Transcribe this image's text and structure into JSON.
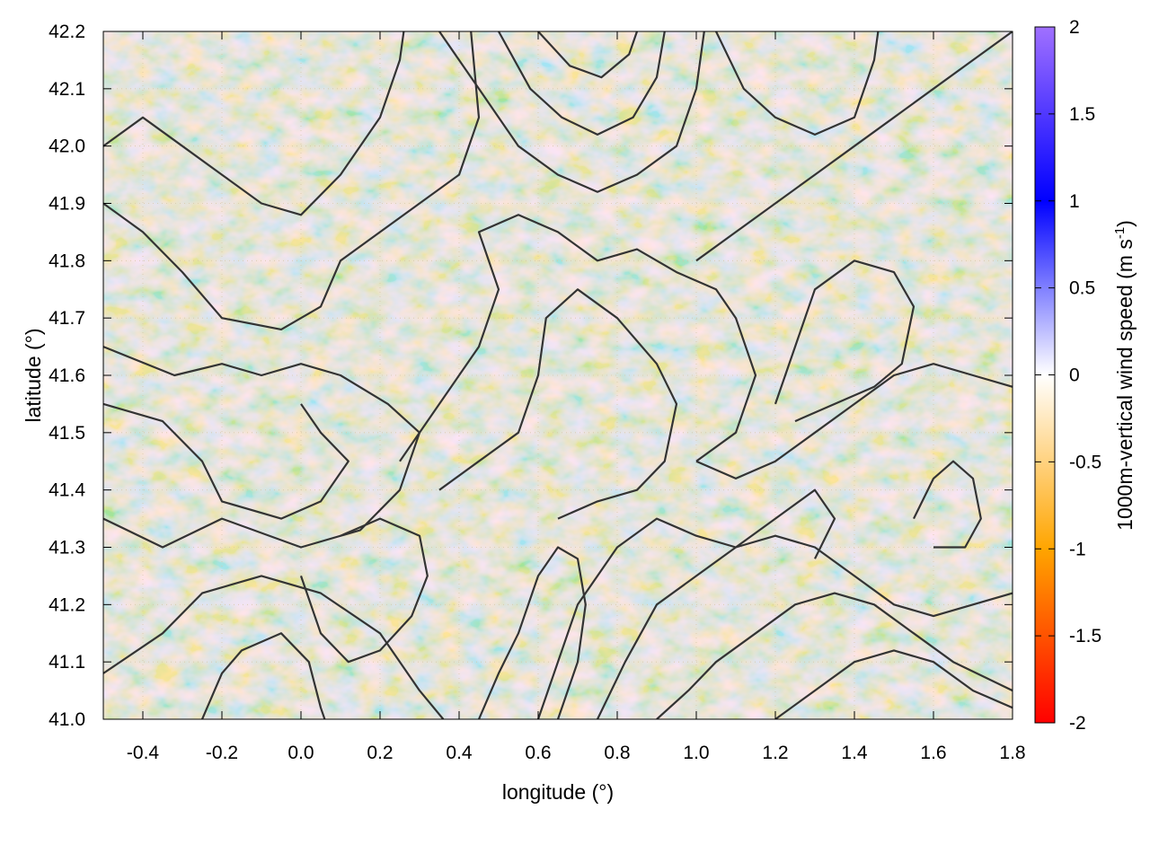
{
  "chart_data": {
    "type": "heatmap",
    "title": "",
    "xlabel": "longitude (°)",
    "ylabel": "latitude (°)",
    "colorbar_label": "1000m-vertical wind speed (m s",
    "colorbar_label_sup": "-1",
    "colorbar_label_end": ")",
    "xlim": [
      -0.5,
      1.8
    ],
    "ylim": [
      41.0,
      42.2
    ],
    "clim": [
      -2,
      2
    ],
    "grid": true,
    "x_ticks": [
      "-0.4",
      "-0.2",
      "0.0",
      "0.2",
      "0.4",
      "0.6",
      "0.8",
      "1.0",
      "1.2",
      "1.4",
      "1.6",
      "1.8"
    ],
    "x_tick_values": [
      -0.4,
      -0.2,
      0.0,
      0.2,
      0.4,
      0.6,
      0.8,
      1.0,
      1.2,
      1.4,
      1.6,
      1.8
    ],
    "y_ticks": [
      "41.0",
      "41.1",
      "41.2",
      "41.3",
      "41.4",
      "41.5",
      "41.6",
      "41.7",
      "41.8",
      "41.9",
      "42.0",
      "42.1",
      "42.2"
    ],
    "y_tick_values": [
      41.0,
      41.1,
      41.2,
      41.3,
      41.4,
      41.5,
      41.6,
      41.7,
      41.8,
      41.9,
      42.0,
      42.1,
      42.2
    ],
    "colorbar_ticks": [
      "2",
      "1.5",
      "1",
      "0.5",
      "0",
      "-0.5",
      "-1",
      "-1.5",
      "-2"
    ],
    "colorbar_tick_values": [
      2,
      1.5,
      1,
      0.5,
      0,
      -0.5,
      -1,
      -1.5,
      -2
    ],
    "colormap": [
      {
        "value": -2.0,
        "color": "#ff0000"
      },
      {
        "value": -1.0,
        "color": "#ffa500"
      },
      {
        "value": 0.0,
        "color": "#ffffff"
      },
      {
        "value": 1.0,
        "color": "#0000ff"
      },
      {
        "value": 2.0,
        "color": "#a070ff"
      }
    ],
    "contour_color": "#333333",
    "contours": [
      [
        [
          -0.5,
          41.08
        ],
        [
          -0.35,
          41.15
        ],
        [
          -0.25,
          41.22
        ],
        [
          -0.1,
          41.25
        ],
        [
          0.05,
          41.22
        ],
        [
          0.2,
          41.15
        ],
        [
          0.3,
          41.05
        ],
        [
          0.36,
          41.0
        ]
      ],
      [
        [
          -0.5,
          41.35
        ],
        [
          -0.35,
          41.3
        ],
        [
          -0.2,
          41.35
        ],
        [
          0.0,
          41.3
        ],
        [
          0.15,
          41.33
        ],
        [
          0.25,
          41.4
        ],
        [
          0.3,
          41.5
        ],
        [
          0.22,
          41.55
        ],
        [
          0.1,
          41.6
        ],
        [
          0.0,
          41.62
        ],
        [
          -0.1,
          41.6
        ],
        [
          -0.2,
          41.62
        ],
        [
          -0.32,
          41.6
        ],
        [
          -0.5,
          41.65
        ]
      ],
      [
        [
          -0.5,
          41.55
        ],
        [
          -0.35,
          41.52
        ],
        [
          -0.25,
          41.45
        ],
        [
          -0.2,
          41.38
        ],
        [
          -0.05,
          41.35
        ],
        [
          0.05,
          41.38
        ],
        [
          0.12,
          41.45
        ],
        [
          0.05,
          41.5
        ],
        [
          0.0,
          41.55
        ]
      ],
      [
        [
          -0.5,
          41.9
        ],
        [
          -0.4,
          41.85
        ],
        [
          -0.3,
          41.78
        ],
        [
          -0.2,
          41.7
        ],
        [
          -0.05,
          41.68
        ],
        [
          0.05,
          41.72
        ],
        [
          0.1,
          41.8
        ],
        [
          0.2,
          41.85
        ],
        [
          0.3,
          41.9
        ],
        [
          0.4,
          41.95
        ],
        [
          0.45,
          42.05
        ],
        [
          0.43,
          42.2
        ]
      ],
      [
        [
          -0.5,
          42.0
        ],
        [
          -0.4,
          42.05
        ],
        [
          -0.3,
          42.0
        ],
        [
          -0.2,
          41.95
        ],
        [
          -0.1,
          41.9
        ],
        [
          0.0,
          41.88
        ],
        [
          0.1,
          41.95
        ],
        [
          0.2,
          42.05
        ],
        [
          0.25,
          42.15
        ],
        [
          0.26,
          42.2
        ]
      ],
      [
        [
          0.35,
          42.2
        ],
        [
          0.45,
          42.1
        ],
        [
          0.55,
          42.0
        ],
        [
          0.65,
          41.95
        ],
        [
          0.75,
          41.92
        ],
        [
          0.85,
          41.95
        ],
        [
          0.95,
          42.0
        ],
        [
          1.0,
          42.1
        ],
        [
          1.02,
          42.2
        ]
      ],
      [
        [
          0.5,
          42.2
        ],
        [
          0.58,
          42.1
        ],
        [
          0.66,
          42.05
        ],
        [
          0.75,
          42.02
        ],
        [
          0.84,
          42.05
        ],
        [
          0.9,
          42.12
        ],
        [
          0.92,
          42.2
        ]
      ],
      [
        [
          0.6,
          42.2
        ],
        [
          0.68,
          42.14
        ],
        [
          0.76,
          42.12
        ],
        [
          0.83,
          42.16
        ],
        [
          0.85,
          42.2
        ]
      ],
      [
        [
          0.25,
          41.45
        ],
        [
          0.35,
          41.55
        ],
        [
          0.45,
          41.65
        ],
        [
          0.5,
          41.75
        ],
        [
          0.45,
          41.85
        ],
        [
          0.55,
          41.88
        ],
        [
          0.65,
          41.85
        ],
        [
          0.75,
          41.8
        ],
        [
          0.85,
          41.82
        ],
        [
          0.95,
          41.78
        ],
        [
          1.05,
          41.75
        ],
        [
          1.1,
          41.7
        ],
        [
          1.15,
          41.6
        ],
        [
          1.1,
          41.5
        ],
        [
          1.0,
          41.45
        ]
      ],
      [
        [
          0.35,
          41.4
        ],
        [
          0.45,
          41.45
        ],
        [
          0.55,
          41.5
        ],
        [
          0.6,
          41.6
        ],
        [
          0.62,
          41.7
        ],
        [
          0.7,
          41.75
        ],
        [
          0.8,
          41.7
        ],
        [
          0.9,
          41.62
        ],
        [
          0.95,
          41.55
        ],
        [
          0.92,
          41.45
        ],
        [
          0.85,
          41.4
        ],
        [
          0.75,
          41.38
        ],
        [
          0.65,
          41.35
        ]
      ],
      [
        [
          1.0,
          41.45
        ],
        [
          1.1,
          41.42
        ],
        [
          1.2,
          41.45
        ],
        [
          1.3,
          41.5
        ],
        [
          1.4,
          41.55
        ],
        [
          1.5,
          41.6
        ],
        [
          1.6,
          41.62
        ],
        [
          1.7,
          41.6
        ],
        [
          1.8,
          41.58
        ]
      ],
      [
        [
          0.6,
          41.0
        ],
        [
          0.65,
          41.1
        ],
        [
          0.7,
          41.2
        ],
        [
          0.8,
          41.3
        ],
        [
          0.9,
          41.35
        ],
        [
          1.0,
          41.32
        ],
        [
          1.1,
          41.3
        ],
        [
          1.2,
          41.35
        ],
        [
          1.3,
          41.4
        ],
        [
          1.35,
          41.35
        ],
        [
          1.3,
          41.28
        ]
      ],
      [
        [
          0.75,
          41.0
        ],
        [
          0.82,
          41.1
        ],
        [
          0.9,
          41.2
        ],
        [
          1.0,
          41.25
        ],
        [
          1.1,
          41.3
        ],
        [
          1.2,
          41.32
        ],
        [
          1.3,
          41.3
        ],
        [
          1.4,
          41.25
        ],
        [
          1.5,
          41.2
        ],
        [
          1.6,
          41.18
        ],
        [
          1.7,
          41.2
        ],
        [
          1.8,
          41.22
        ]
      ],
      [
        [
          0.9,
          41.0
        ],
        [
          0.98,
          41.05
        ],
        [
          1.05,
          41.1
        ],
        [
          1.15,
          41.15
        ],
        [
          1.25,
          41.2
        ],
        [
          1.35,
          41.22
        ],
        [
          1.45,
          41.2
        ],
        [
          1.55,
          41.15
        ],
        [
          1.65,
          41.1
        ],
        [
          1.8,
          41.05
        ]
      ],
      [
        [
          1.2,
          41.0
        ],
        [
          1.3,
          41.05
        ],
        [
          1.4,
          41.1
        ],
        [
          1.5,
          41.12
        ],
        [
          1.6,
          41.1
        ],
        [
          1.7,
          41.05
        ],
        [
          1.8,
          41.02
        ]
      ],
      [
        [
          1.2,
          41.55
        ],
        [
          1.25,
          41.65
        ],
        [
          1.3,
          41.75
        ],
        [
          1.4,
          41.8
        ],
        [
          1.5,
          41.78
        ],
        [
          1.55,
          41.72
        ],
        [
          1.52,
          41.62
        ],
        [
          1.45,
          41.58
        ],
        [
          1.35,
          41.55
        ],
        [
          1.25,
          41.52
        ]
      ],
      [
        [
          1.0,
          41.8
        ],
        [
          1.1,
          41.85
        ],
        [
          1.2,
          41.9
        ],
        [
          1.3,
          41.95
        ],
        [
          1.4,
          42.0
        ],
        [
          1.5,
          42.05
        ],
        [
          1.6,
          42.1
        ],
        [
          1.7,
          42.15
        ],
        [
          1.8,
          42.2
        ]
      ],
      [
        [
          1.05,
          42.2
        ],
        [
          1.12,
          42.1
        ],
        [
          1.2,
          42.05
        ],
        [
          1.3,
          42.02
        ],
        [
          1.4,
          42.05
        ],
        [
          1.45,
          42.15
        ],
        [
          1.46,
          42.2
        ]
      ],
      [
        [
          0.0,
          41.25
        ],
        [
          0.05,
          41.15
        ],
        [
          0.12,
          41.1
        ],
        [
          0.2,
          41.12
        ],
        [
          0.28,
          41.18
        ],
        [
          0.32,
          41.25
        ],
        [
          0.3,
          41.32
        ],
        [
          0.2,
          41.35
        ],
        [
          0.1,
          41.32
        ]
      ],
      [
        [
          0.45,
          41.0
        ],
        [
          0.5,
          41.08
        ],
        [
          0.55,
          41.15
        ],
        [
          0.6,
          41.25
        ],
        [
          0.65,
          41.3
        ],
        [
          0.7,
          41.28
        ],
        [
          0.72,
          41.2
        ],
        [
          0.7,
          41.1
        ],
        [
          0.65,
          41.0
        ]
      ],
      [
        [
          -0.25,
          41.0
        ],
        [
          -0.2,
          41.08
        ],
        [
          -0.15,
          41.12
        ],
        [
          -0.05,
          41.15
        ],
        [
          0.02,
          41.1
        ],
        [
          0.05,
          41.02
        ],
        [
          0.06,
          41.0
        ]
      ],
      [
        [
          1.55,
          41.35
        ],
        [
          1.6,
          41.42
        ],
        [
          1.65,
          41.45
        ],
        [
          1.7,
          41.42
        ],
        [
          1.72,
          41.35
        ],
        [
          1.68,
          41.3
        ],
        [
          1.6,
          41.3
        ]
      ]
    ]
  }
}
